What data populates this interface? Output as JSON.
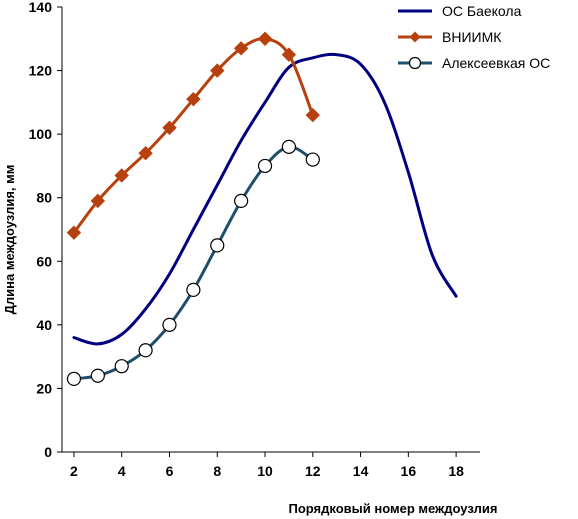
{
  "chart_data": {
    "type": "line",
    "title": "",
    "xlabel": "Порядковый номер междоузлия",
    "ylabel": "Длина междоузлия, мм",
    "xlim": [
      1.5,
      19
    ],
    "ylim": [
      0,
      140
    ],
    "xticks": [
      2,
      4,
      6,
      8,
      10,
      12,
      14,
      16,
      18
    ],
    "yticks": [
      0,
      20,
      40,
      60,
      80,
      100,
      120,
      140
    ],
    "grid": false,
    "legend_position": "top-right",
    "series": [
      {
        "name": "ОС Баекола",
        "color": "#000080",
        "marker": "none",
        "x": [
          2,
          3,
          4,
          5,
          6,
          7,
          8,
          9,
          10,
          11,
          12,
          13,
          14,
          15,
          16,
          17,
          18
        ],
        "y": [
          36,
          34,
          37,
          45,
          56,
          70,
          84,
          98,
          110,
          121,
          124,
          125,
          122,
          110,
          88,
          62,
          49
        ]
      },
      {
        "name": "ВНИИМК",
        "color": "#b7410e",
        "marker": "diamond",
        "x": [
          2,
          3,
          4,
          5,
          6,
          7,
          8,
          9,
          10,
          11,
          12
        ],
        "y": [
          69,
          79,
          87,
          94,
          102,
          111,
          120,
          127,
          130,
          125,
          106
        ]
      },
      {
        "name": "Алексеевкая ОС",
        "color": "#1f4e6b",
        "marker": "circle",
        "x": [
          2,
          3,
          4,
          5,
          6,
          7,
          8,
          9,
          10,
          11,
          12
        ],
        "y": [
          23,
          24,
          27,
          32,
          40,
          51,
          65,
          79,
          90,
          96,
          92
        ]
      }
    ]
  }
}
